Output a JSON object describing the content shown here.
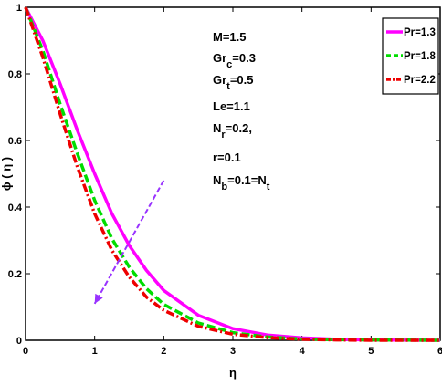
{
  "chart_data": {
    "type": "line",
    "title": "",
    "xlabel": "η",
    "ylabel": "ϕ ( η )",
    "xlim": [
      0,
      6
    ],
    "ylim": [
      0,
      1
    ],
    "xticks": [
      "0",
      "1",
      "2",
      "3",
      "4",
      "5",
      "6"
    ],
    "yticks": [
      "0",
      "0.2",
      "0.4",
      "0.6",
      "0.8",
      "1"
    ],
    "grid": false,
    "legend_position": "top-right",
    "series": [
      {
        "name": "Pr=1.3",
        "color": "#ff00ff",
        "style": "solid",
        "x": [
          0,
          0.25,
          0.5,
          0.75,
          1.0,
          1.25,
          1.5,
          1.75,
          2.0,
          2.5,
          3.0,
          3.5,
          4.0,
          4.5,
          5.0,
          6.0
        ],
        "y": [
          1.0,
          0.9,
          0.77,
          0.63,
          0.5,
          0.38,
          0.285,
          0.21,
          0.15,
          0.075,
          0.035,
          0.016,
          0.007,
          0.003,
          0.001,
          0.0
        ]
      },
      {
        "name": "Pr=1.8",
        "color": "#00dd00",
        "style": "dashed",
        "x": [
          0,
          0.25,
          0.5,
          0.75,
          1.0,
          1.25,
          1.5,
          1.75,
          2.0,
          2.5,
          3.0,
          3.5,
          4.0,
          4.5,
          5.0,
          6.0
        ],
        "y": [
          1.0,
          0.87,
          0.71,
          0.56,
          0.42,
          0.305,
          0.22,
          0.155,
          0.108,
          0.052,
          0.023,
          0.01,
          0.004,
          0.002,
          0.001,
          0.0
        ]
      },
      {
        "name": "Pr=2.2",
        "color": "#ee0000",
        "style": "dashdot",
        "x": [
          0,
          0.25,
          0.5,
          0.75,
          1.0,
          1.25,
          1.5,
          1.75,
          2.0,
          2.5,
          3.0,
          3.5,
          4.0,
          4.5,
          5.0,
          6.0
        ],
        "y": [
          1.0,
          0.85,
          0.68,
          0.52,
          0.38,
          0.27,
          0.19,
          0.13,
          0.09,
          0.042,
          0.018,
          0.008,
          0.003,
          0.001,
          0.0,
          0.0
        ]
      }
    ],
    "annotations": [
      {
        "main": "M=1.5",
        "sub": "",
        "tail": ""
      },
      {
        "main": "Gr",
        "sub": "c",
        "tail": "=0.3"
      },
      {
        "main": "Gr",
        "sub": "t",
        "tail": "=0.5"
      },
      {
        "main": "Le=1.1",
        "sub": "",
        "tail": ""
      },
      {
        "main": "N",
        "sub": "r",
        "tail": "=0.2,"
      },
      {
        "main": "r=0.1",
        "sub": "",
        "tail": ""
      },
      {
        "main": "N",
        "sub": "b",
        "tail": "=0.1=N",
        "sub2": "t"
      }
    ],
    "arrow": {
      "from": [
        2.0,
        0.48
      ],
      "to": [
        1.0,
        0.11
      ],
      "color": "#9933ff"
    }
  }
}
